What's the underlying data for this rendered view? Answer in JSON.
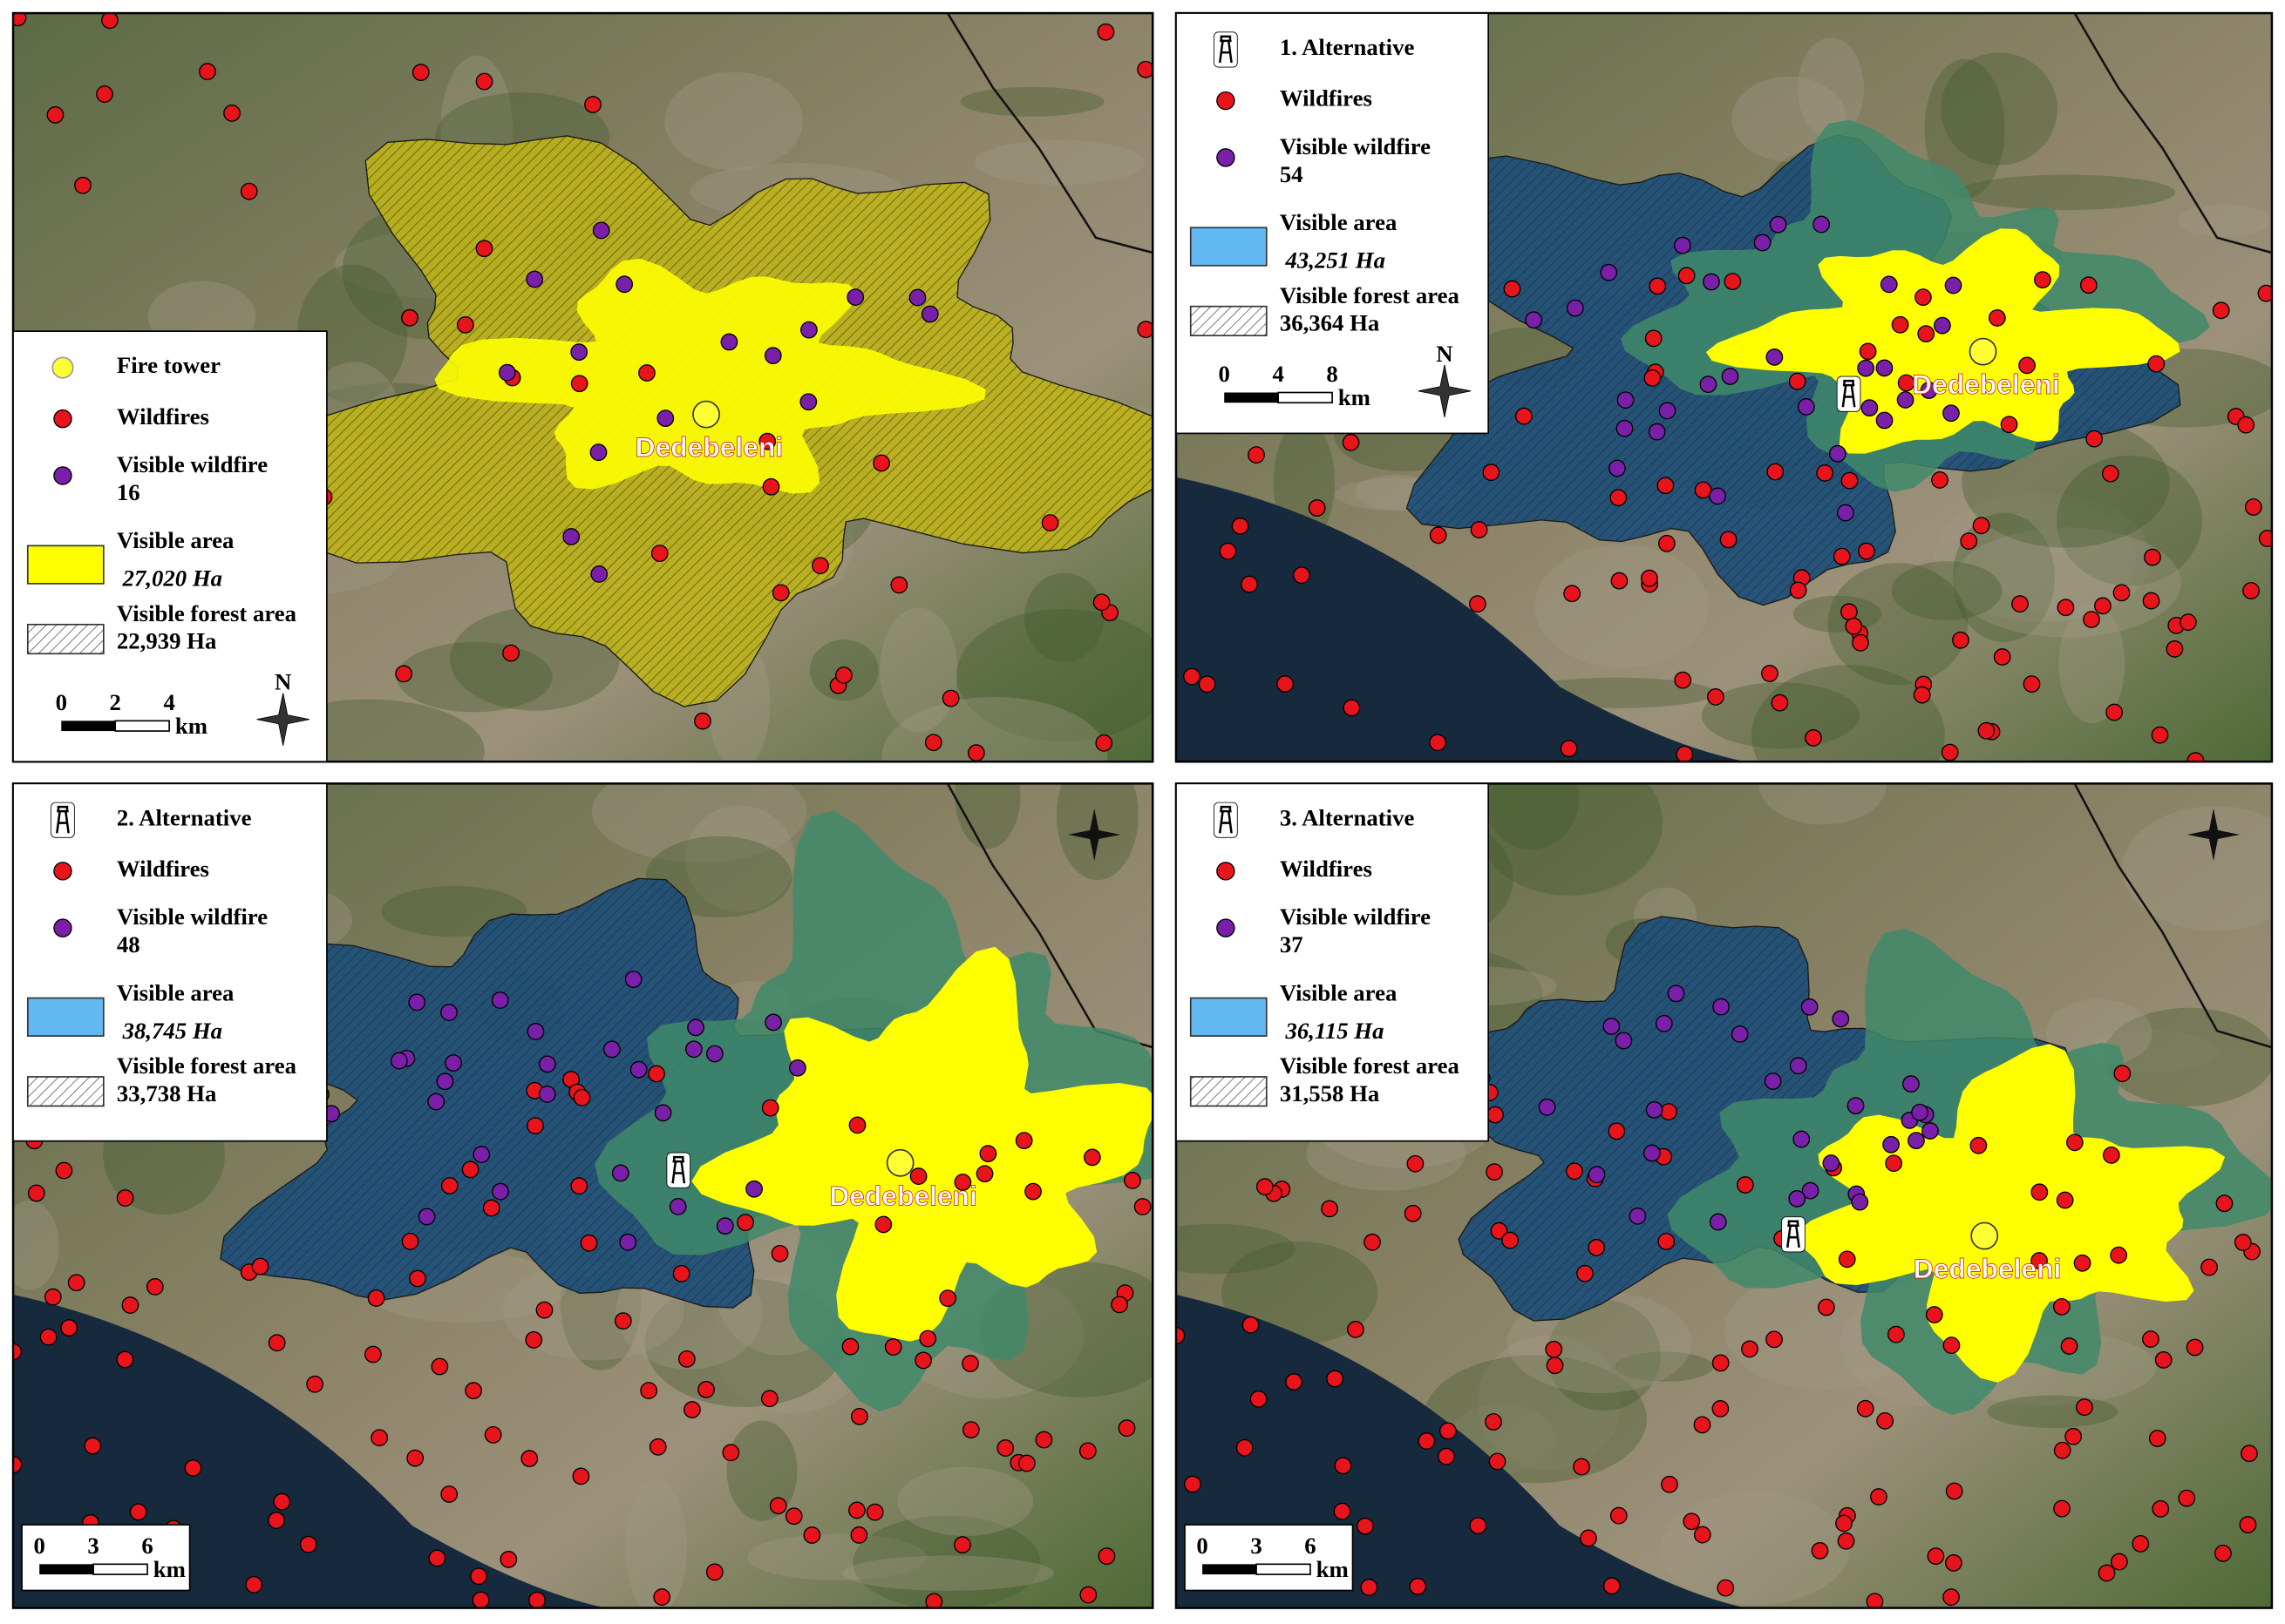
{
  "panels": [
    {
      "legend": [
        {
          "label": "Fire tower"
        },
        {
          "label": "Wildfires"
        },
        {
          "label": "Visible wildfire",
          "value": 16
        },
        {
          "label": "Visible area",
          "value": "27,020 Ha"
        },
        {
          "label": "Visible forest area",
          "value": "22,939 Ha"
        }
      ],
      "scale": {
        "ticks": [
          0,
          2,
          4
        ],
        "unit": "km"
      },
      "north": "N",
      "place": "Dedebeleni"
    },
    {
      "legend": [
        {
          "label": "1. Alternative"
        },
        {
          "label": "Wildfires"
        },
        {
          "label": "Visible wildfire",
          "value": 54
        },
        {
          "label": "Visible area",
          "value": "43,251 Ha"
        },
        {
          "label": "Visible forest area",
          "value": "36,364 Ha"
        }
      ],
      "scale": {
        "ticks": [
          0,
          4,
          8
        ],
        "unit": "km"
      },
      "north": "N",
      "place": "Dedebeleni"
    },
    {
      "legend": [
        {
          "label": "2. Alternative"
        },
        {
          "label": "Wildfires"
        },
        {
          "label": "Visible wildfire",
          "value": 48
        },
        {
          "label": "Visible area",
          "value": "38,745 Ha"
        },
        {
          "label": "Visible forest area",
          "value": "33,738 Ha"
        }
      ],
      "scale": {
        "ticks": [
          0,
          3,
          6
        ],
        "unit": "km"
      },
      "place": "Dedebeleni"
    },
    {
      "legend": [
        {
          "label": "3. Alternative"
        },
        {
          "label": "Wildfires"
        },
        {
          "label": "Visible wildfire",
          "value": 37
        },
        {
          "label": "Visible area",
          "value": "36,115 Ha"
        },
        {
          "label": "Visible forest area",
          "value": "31,558 Ha"
        }
      ],
      "scale": {
        "ticks": [
          0,
          3,
          6
        ],
        "unit": "km"
      },
      "place": "Dedebeleni"
    }
  ]
}
